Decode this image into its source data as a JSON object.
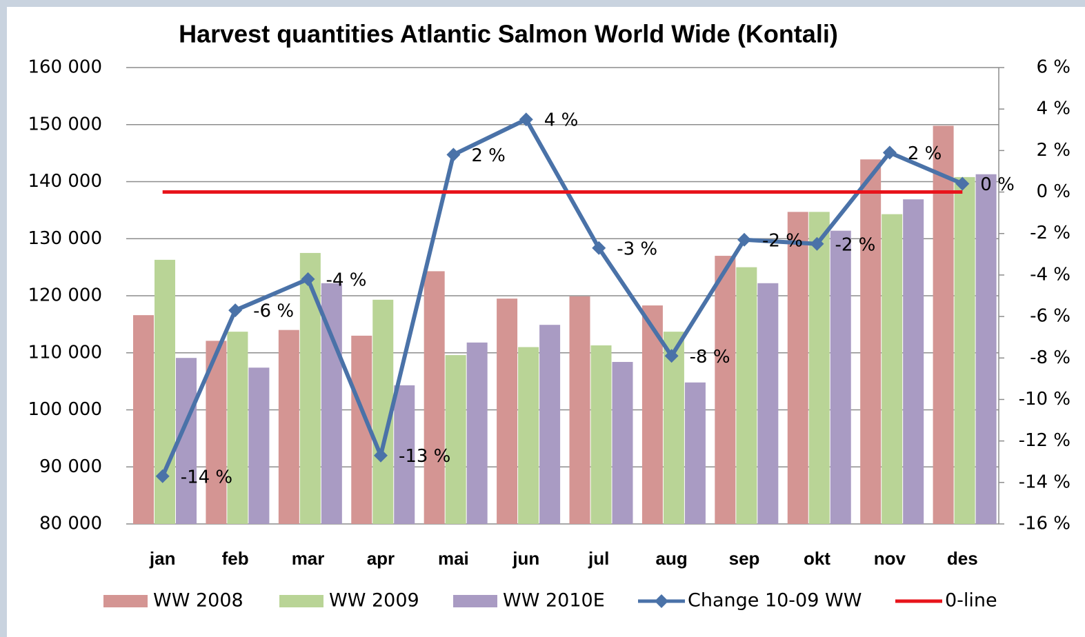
{
  "chart_data": {
    "type": "bar",
    "title": "Harvest quantities Atlantic Salmon World Wide (Kontali)",
    "categories": [
      "jan",
      "feb",
      "mar",
      "apr",
      "mai",
      "jun",
      "jul",
      "aug",
      "sep",
      "okt",
      "nov",
      "des"
    ],
    "series": [
      {
        "name": "WW 2008",
        "color": "#d49593",
        "values": [
          116600,
          112100,
          114000,
          113000,
          124300,
          119500,
          119900,
          118300,
          127000,
          134700,
          143900,
          149800
        ]
      },
      {
        "name": "WW 2009",
        "color": "#b9d496",
        "values": [
          126300,
          113700,
          127500,
          119300,
          109600,
          111000,
          111300,
          113700,
          125000,
          134700,
          134300,
          140800
        ]
      },
      {
        "name": "WW 2010E",
        "color": "#a99bc3",
        "values": [
          109100,
          107400,
          122200,
          104300,
          111800,
          114900,
          108400,
          104800,
          122200,
          131400,
          136900,
          141300
        ]
      },
      {
        "name": "Change 10-09 WW",
        "color": "#4a72a8",
        "type": "line",
        "axis": "y2",
        "marker": "diamond",
        "values": [
          -13.7,
          -5.7,
          -4.2,
          -12.7,
          1.8,
          3.5,
          -2.7,
          -7.9,
          -2.3,
          -2.5,
          1.9,
          0.4
        ],
        "value_labels": [
          "-14 %",
          "-6 %",
          "-4 %",
          "-13 %",
          "2 %",
          "4 %",
          "-3 %",
          "-8 %",
          "-2 %",
          "-2 %",
          "2 %",
          "0 %"
        ]
      },
      {
        "name": "0-line",
        "color": "#e8141b",
        "type": "line",
        "axis": "y2",
        "values": [
          0,
          0,
          0,
          0,
          0,
          0,
          0,
          0,
          0,
          0,
          0,
          0
        ]
      }
    ],
    "ylim": [
      80000,
      160000
    ],
    "yticks": [
      {
        "value": 80000,
        "label": "80 000"
      },
      {
        "value": 90000,
        "label": "90 000"
      },
      {
        "value": 100000,
        "label": "100 000"
      },
      {
        "value": 110000,
        "label": "110 000"
      },
      {
        "value": 120000,
        "label": "120 000"
      },
      {
        "value": 130000,
        "label": "130 000"
      },
      {
        "value": 140000,
        "label": "140 000"
      },
      {
        "value": 150000,
        "label": "150 000"
      },
      {
        "value": 160000,
        "label": "160 000"
      }
    ],
    "y2lim": [
      -16,
      6
    ],
    "y2ticks": [
      {
        "value": -16,
        "label": "-16 %"
      },
      {
        "value": -14,
        "label": "-14 %"
      },
      {
        "value": -12,
        "label": "-12 %"
      },
      {
        "value": -10,
        "label": "-10 %"
      },
      {
        "value": -8,
        "label": "-8 %"
      },
      {
        "value": -6,
        "label": "-6 %"
      },
      {
        "value": -4,
        "label": "-4 %"
      },
      {
        "value": -2,
        "label": "-2 %"
      },
      {
        "value": 0,
        "label": "0 %"
      },
      {
        "value": 2,
        "label": "2 %"
      },
      {
        "value": 4,
        "label": "4 %"
      },
      {
        "value": 6,
        "label": "6 %"
      }
    ],
    "grid": true,
    "legend": "bottom"
  }
}
